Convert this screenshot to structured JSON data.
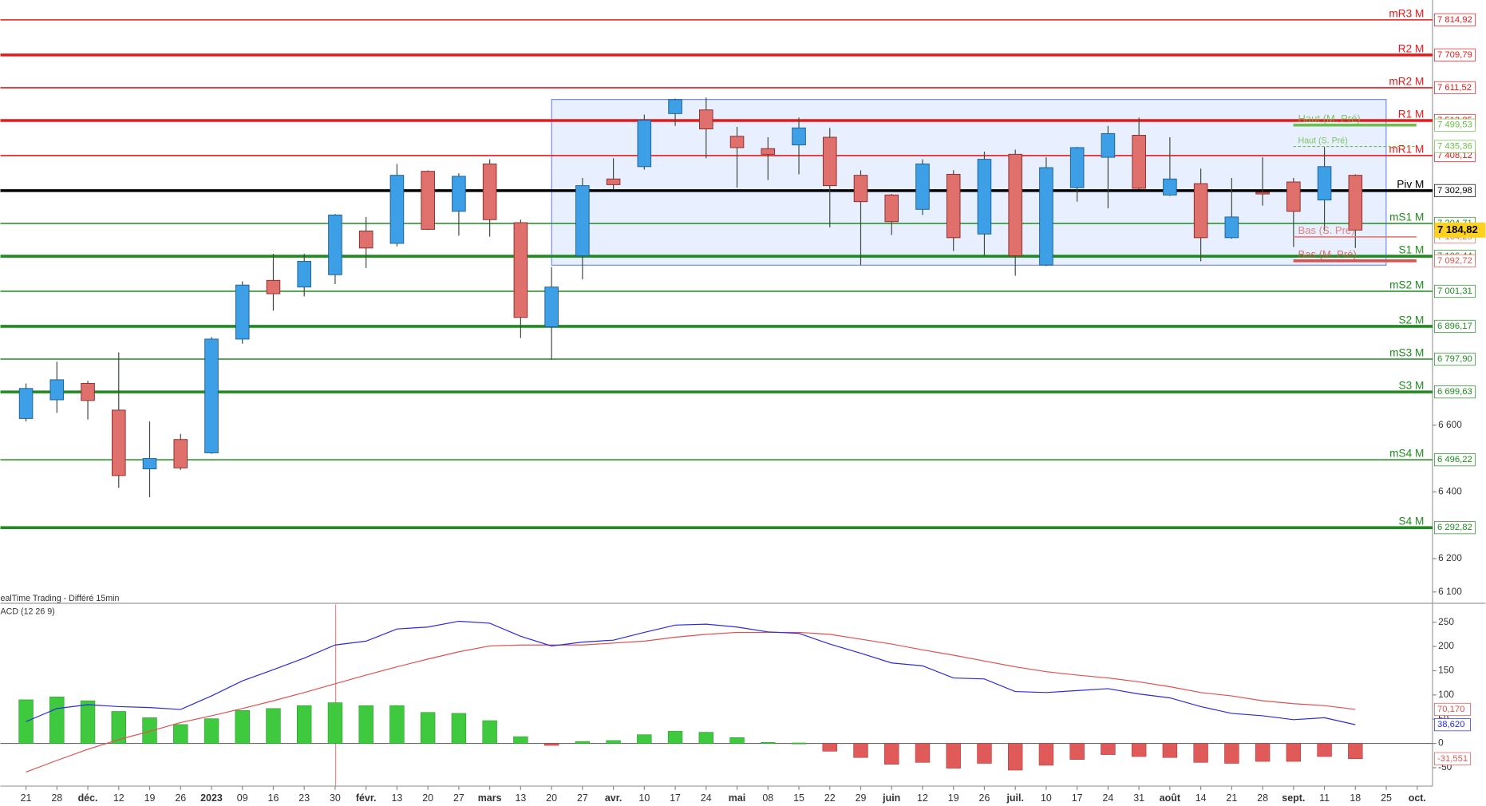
{
  "chart_data": [
    {
      "type": "candlestick",
      "source": "ealTime Trading - Différé 15min",
      "open": [
        6620,
        6676,
        6725,
        6645,
        6469,
        6557,
        6517,
        6858,
        7034,
        7014,
        7051,
        7182,
        7145,
        7361,
        7241,
        7383,
        7207,
        6895,
        7108,
        7338,
        7375,
        7534,
        7545,
        7466,
        7429,
        7440,
        7463,
        7349,
        7290,
        7247,
        7352,
        7173,
        7412,
        7080,
        7312,
        7403,
        7469,
        7290,
        7324,
        7162,
        7298,
        7329,
        7275,
        7349,
        null,
        null
      ],
      "high": [
        6725,
        6790,
        6733,
        6818,
        6611,
        6574,
        6864,
        7031,
        7114,
        7114,
        7233,
        7224,
        7383,
        7364,
        7355,
        7397,
        7216,
        7074,
        7341,
        7400,
        7531,
        7579,
        7582,
        7494,
        7463,
        7522,
        7491,
        7364,
        7293,
        7397,
        7364,
        7420,
        7426,
        7403,
        7434,
        7497,
        7522,
        7463,
        7369,
        7341,
        7403,
        7341,
        7434,
        7352,
        null,
        null
      ],
      "low": [
        6611,
        6637,
        6617,
        6412,
        6384,
        6466,
        6514,
        6844,
        6943,
        6986,
        7023,
        7071,
        7136,
        7185,
        7168,
        7165,
        6861,
        6796,
        7037,
        7307,
        7366,
        7497,
        7400,
        7312,
        7335,
        7352,
        7193,
        7080,
        7170,
        7230,
        7122,
        7108,
        7048,
        7077,
        7270,
        7250,
        7307,
        7287,
        7091,
        7159,
        7258,
        7134,
        7182,
        7131,
        null,
        null
      ],
      "close": [
        6710,
        6736,
        6674,
        6449,
        6500,
        6472,
        6858,
        7020,
        6994,
        7091,
        7230,
        7131,
        7349,
        7187,
        7346,
        7216,
        6923,
        7014,
        7318,
        7321,
        7514,
        7576,
        7488,
        7432,
        7412,
        7491,
        7318,
        7270,
        7210,
        7383,
        7162,
        7397,
        7108,
        7372,
        7432,
        7474,
        7310,
        7338,
        7162,
        7224,
        7293,
        7241,
        7375,
        7184.82,
        null,
        null
      ],
      "up_color": "#3d9fe6",
      "down_color": "#e0706b",
      "ylim": [
        6071.6,
        7874.5
      ],
      "yticks": [
        {
          "value": 6600,
          "label": "6 600"
        },
        {
          "value": 6400,
          "label": "6 400"
        },
        {
          "value": 6200,
          "label": "6 200"
        },
        {
          "value": 6100,
          "label": "6 100"
        }
      ],
      "levels": [
        {
          "name": "mR3 M",
          "value": 7814.92,
          "label": "7 814,92",
          "color": "#e8191b",
          "style": "thin"
        },
        {
          "name": "R2 M",
          "value": 7709.79,
          "label": "7 709,79",
          "color": "#e8191b",
          "style": "thick"
        },
        {
          "name": "mR2 M",
          "value": 7611.52,
          "label": "7 611,52",
          "color": "#e8191b",
          "style": "thin"
        },
        {
          "name": "R1 M",
          "value": 7513.25,
          "label": "7 513,25",
          "color": "#e8191b",
          "style": "thick"
        },
        {
          "name": "mR1 M",
          "value": 7408.12,
          "label": "7 408,12",
          "color": "#e8191b",
          "style": "thin"
        },
        {
          "name": "Piv M",
          "value": 7302.98,
          "label": "7 302,98",
          "color": "#000000",
          "style": "thick"
        },
        {
          "name": "mS1 M",
          "value": 7204.71,
          "label": "7 204,71",
          "color": "#1e8c1e",
          "style": "thin"
        },
        {
          "name": "S1 M",
          "value": 7106.44,
          "label": "7 106,44",
          "color": "#1e8c1e",
          "style": "thick"
        },
        {
          "name": "mS2 M",
          "value": 7001.31,
          "label": "7 001,31",
          "color": "#1e8c1e",
          "style": "thin"
        },
        {
          "name": "S2 M",
          "value": 6896.17,
          "label": "6 896,17",
          "color": "#1e8c1e",
          "style": "thick"
        },
        {
          "name": "mS3 M",
          "value": 6797.9,
          "label": "6 797,90",
          "color": "#1e8c1e",
          "style": "thin"
        },
        {
          "name": "S3 M",
          "value": 6699.63,
          "label": "6 699,63",
          "color": "#1e8c1e",
          "style": "thick"
        },
        {
          "name": "mS4 M",
          "value": 6496.22,
          "label": "6 496,22",
          "color": "#1e8c1e",
          "style": "thin"
        },
        {
          "name": "S4 M",
          "value": 6292.82,
          "label": "6 292,82",
          "color": "#1e8c1e",
          "style": "thick"
        }
      ],
      "markers": [
        {
          "name": "Haut (M. Pré)",
          "value": 7499.53,
          "label": "7 499,53",
          "color": "#6cc04a",
          "style": "thick"
        },
        {
          "name": "Haut (S. Pré)",
          "value": 7435.36,
          "label": "7 435,36",
          "color": "#6cc04a",
          "style": "dashed"
        },
        {
          "name": "Bas (S. Pré)",
          "value": 7164.25,
          "label": "7 164,25",
          "color": "#e0706b",
          "style": "thin"
        },
        {
          "name": "Bas (M. Pré)",
          "value": 7092.72,
          "label": "7 092,72",
          "color": "#d9534f",
          "style": "thick"
        }
      ],
      "last_price": {
        "value": 7184.82,
        "label": "7 184,82",
        "color": "#ffd21f"
      }
    },
    {
      "type": "macd",
      "title": "ACD (12 26 9)",
      "categories": [
        "21",
        "28",
        "déc.",
        "12",
        "19",
        "26",
        "2023",
        "09",
        "16",
        "23",
        "30",
        "févr.",
        "13",
        "20",
        "27",
        "mars",
        "13",
        "20",
        "27",
        "avr.",
        "10",
        "17",
        "24",
        "mai",
        "08",
        "15",
        "22",
        "29",
        "juin",
        "12",
        "19",
        "26",
        "juil.",
        "10",
        "17",
        "24",
        "31",
        "août",
        "14",
        "21",
        "28",
        "sept.",
        "11",
        "18",
        "25",
        "oct."
      ],
      "histogram": {
        "pos_color": "#3fc93f",
        "neg_color": "#e05a5a",
        "values": [
          90,
          96,
          88,
          66,
          53,
          39,
          51,
          68,
          72,
          78,
          84,
          78,
          78,
          64,
          62,
          47,
          14,
          -4,
          4,
          6,
          18,
          25,
          23,
          12,
          2,
          1,
          -16,
          -29,
          -43,
          -39,
          -51,
          -41,
          -55,
          -45,
          -33,
          -23,
          -27,
          -29,
          -39,
          -41,
          -37,
          -37,
          -27,
          -31.551,
          null,
          null
        ],
        "value_labels": [
          null,
          null,
          null,
          null,
          null,
          null,
          null,
          null,
          null,
          null,
          null,
          null,
          null,
          null,
          null,
          null,
          null,
          null,
          null,
          null,
          null,
          null,
          null,
          null,
          null,
          null,
          null,
          null,
          null,
          null,
          null,
          null,
          null,
          null,
          null,
          null,
          null,
          null,
          null,
          null,
          null,
          null,
          null,
          "-31,551",
          null,
          null
        ]
      },
      "macd": {
        "color": "#2a2ae0",
        "values": [
          45,
          72,
          80,
          76,
          74,
          70,
          98,
          129,
          152,
          176,
          203,
          211,
          236,
          240,
          252,
          248,
          221,
          201,
          209,
          213,
          229,
          244,
          246,
          240,
          230,
          227,
          205,
          186,
          166,
          160,
          135,
          133,
          107,
          105,
          109,
          113,
          102,
          94,
          76,
          62,
          57,
          49,
          53,
          38.62,
          null,
          null
        ],
        "value_labels": [
          null,
          null,
          null,
          null,
          null,
          null,
          null,
          null,
          null,
          null,
          null,
          null,
          null,
          null,
          null,
          null,
          null,
          null,
          null,
          null,
          null,
          null,
          null,
          null,
          null,
          null,
          null,
          null,
          null,
          null,
          null,
          null,
          null,
          null,
          null,
          null,
          null,
          null,
          null,
          null,
          null,
          null,
          null,
          "38,620",
          null,
          null
        ]
      },
      "signal": {
        "color": "#e05050",
        "values": [
          -59,
          -35,
          -12,
          8,
          25,
          43,
          57,
          72,
          88,
          105,
          123,
          141,
          158,
          174,
          189,
          201,
          203,
          203,
          203,
          207,
          211,
          219,
          225,
          229,
          229,
          229,
          225,
          215,
          205,
          193,
          182,
          170,
          158,
          148,
          141,
          135,
          127,
          117,
          105,
          98,
          88,
          82,
          78,
          70.17,
          null,
          null
        ],
        "value_labels": [
          null,
          null,
          null,
          null,
          null,
          null,
          null,
          null,
          null,
          null,
          null,
          null,
          null,
          null,
          null,
          null,
          null,
          null,
          null,
          null,
          null,
          null,
          null,
          null,
          null,
          null,
          null,
          null,
          null,
          null,
          null,
          null,
          null,
          null,
          null,
          null,
          null,
          null,
          null,
          null,
          null,
          null,
          null,
          "70,170",
          null,
          null
        ]
      },
      "ylim": [
        -88,
        287
      ],
      "yticks": [
        250,
        200,
        150,
        100,
        50,
        0,
        -50
      ]
    }
  ]
}
